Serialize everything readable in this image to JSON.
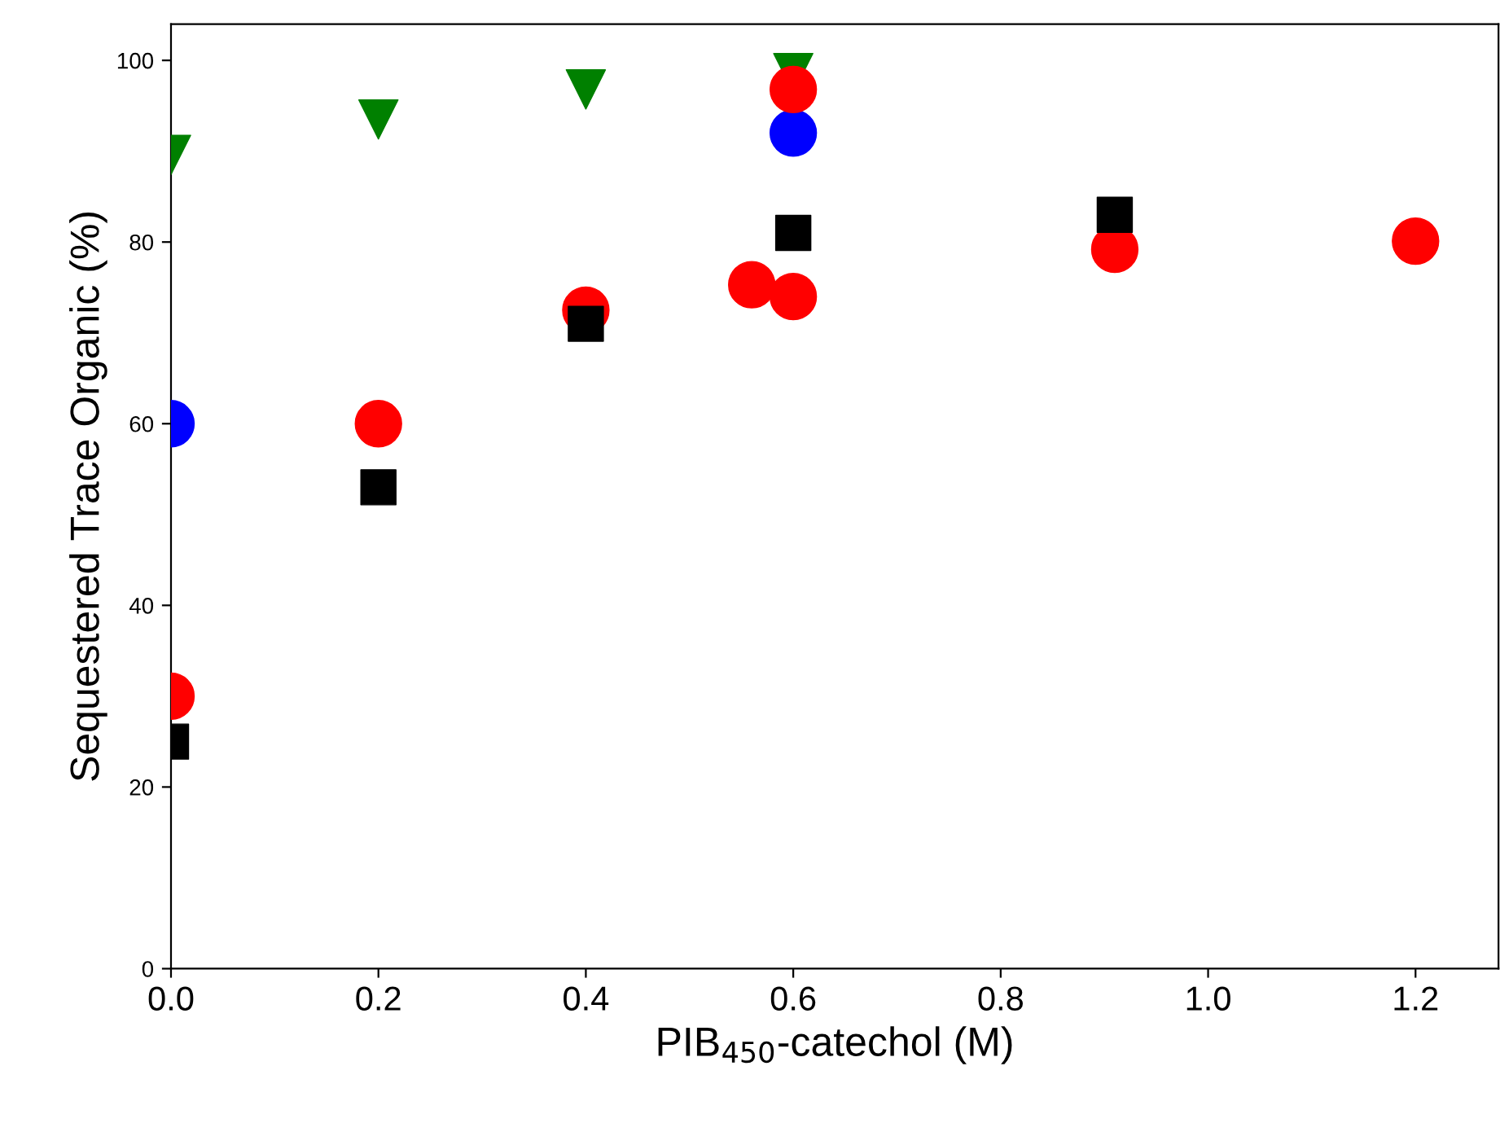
{
  "chart_data": {
    "type": "scatter",
    "xlabel": "PIB$_{450}$-catechol (M)",
    "ylabel": "Sequestered Trace Organic (%)",
    "xlim": [
      0,
      1.28
    ],
    "xticks": [
      {
        "value": 0,
        "label": "0.0"
      },
      {
        "value": 0.2,
        "label": "0.2"
      },
      {
        "value": 0.4,
        "label": "0.4"
      },
      {
        "value": 0.6,
        "label": "0.6"
      },
      {
        "value": 0.8,
        "label": "0.8"
      },
      {
        "value": 1.0,
        "label": "1.0"
      },
      {
        "value": 1.2,
        "label": "1.2"
      }
    ],
    "ylim": [
      0,
      104
    ],
    "yticks": [
      0,
      20,
      40,
      60,
      80,
      100
    ],
    "grid": false,
    "legend": false,
    "series": [
      {
        "color": "#008000",
        "marker": "triangle",
        "x": [
          0,
          0.2,
          0.4,
          0.6
        ],
        "values": [
          89.6,
          93.5,
          96.8,
          98.6
        ]
      },
      {
        "color": "#0000ff",
        "marker": "circle",
        "x": [
          0,
          0.6
        ],
        "values": [
          60,
          92
        ]
      },
      {
        "color": "#ff0000",
        "marker": "circle",
        "x": [
          0,
          0.2,
          0.4,
          0.56,
          0.6,
          0.91,
          1.2
        ],
        "values": [
          30,
          60,
          72.5,
          75.3,
          74,
          79.2,
          80.1
        ]
      },
      {
        "color": "#ff0000",
        "marker": "circle",
        "x": [
          0.6
        ],
        "values": [
          96.8
        ]
      },
      {
        "color": "#000000",
        "marker": "square",
        "x": [
          0,
          0.2,
          0.4,
          0.6,
          0.91
        ],
        "values": [
          25,
          53,
          71,
          81,
          83
        ]
      }
    ]
  }
}
